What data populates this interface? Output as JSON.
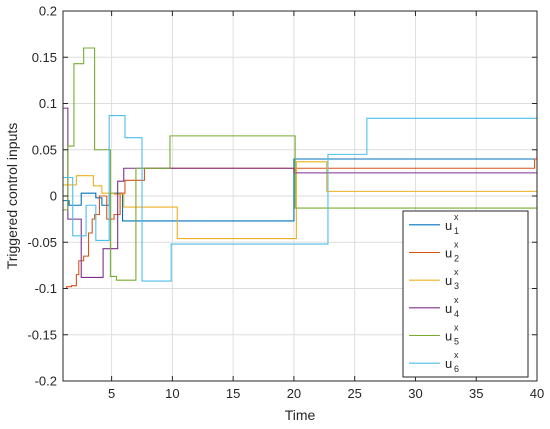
{
  "chart_data": {
    "type": "line",
    "step": true,
    "xlabel": "Time",
    "ylabel": "Triggered control inputs",
    "xlim": [
      1,
      40
    ],
    "ylim": [
      -0.2,
      0.2
    ],
    "xticks": [
      5,
      10,
      15,
      20,
      25,
      30,
      35,
      40
    ],
    "yticks": [
      -0.2,
      -0.15,
      -0.1,
      -0.05,
      0,
      0.05,
      0.1,
      0.15,
      0.2
    ],
    "ytick_labels": [
      "-0.2",
      "-0.15",
      "-0.1",
      "-0.05",
      "0",
      "0.05",
      "0.1",
      "0.15",
      "0.2"
    ],
    "grid": true,
    "legend_position": "bottom-right",
    "colors": [
      "#0072BD",
      "#D95319",
      "#EDB120",
      "#7E2F8E",
      "#77AC30",
      "#4DBEEE"
    ],
    "series": [
      {
        "symbol": "u",
        "sup": "x",
        "sub": "1",
        "points": [
          [
            1,
            -0.005
          ],
          [
            1.5,
            -0.01
          ],
          [
            2.5,
            0.003
          ],
          [
            3.7,
            -0.002
          ],
          [
            4.2,
            -0.01
          ],
          [
            4.8,
            0.003
          ],
          [
            5.9,
            -0.027
          ],
          [
            20,
            0.04
          ],
          [
            40,
            0.04
          ]
        ]
      },
      {
        "symbol": "u",
        "sup": "x",
        "sub": "2",
        "points": [
          [
            1,
            -0.1
          ],
          [
            1.3,
            -0.098
          ],
          [
            1.7,
            -0.097
          ],
          [
            2.1,
            -0.085
          ],
          [
            2.3,
            -0.07
          ],
          [
            2.7,
            -0.065
          ],
          [
            3.1,
            -0.04
          ],
          [
            3.4,
            -0.025
          ],
          [
            3.6,
            -0.02
          ],
          [
            4,
            0.0
          ],
          [
            4.6,
            -0.025
          ],
          [
            5.2,
            -0.02
          ],
          [
            5.7,
            0.003
          ],
          [
            6.1,
            0.017
          ],
          [
            7.7,
            0.03
          ],
          [
            20,
            0.028
          ],
          [
            20.2,
            0.03
          ],
          [
            39.8,
            0.04
          ],
          [
            40,
            0.05
          ]
        ]
      },
      {
        "symbol": "u",
        "sup": "x",
        "sub": "3",
        "points": [
          [
            1,
            0.012
          ],
          [
            2.1,
            0.022
          ],
          [
            3.5,
            0.011
          ],
          [
            4.2,
            0.003
          ],
          [
            5.2,
            0.002
          ],
          [
            6,
            -0.012
          ],
          [
            10.4,
            -0.046
          ],
          [
            20.2,
            0.037
          ],
          [
            22.7,
            0.005
          ],
          [
            40,
            0.005
          ]
        ]
      },
      {
        "symbol": "u",
        "sup": "x",
        "sub": "4",
        "points": [
          [
            1,
            0.095
          ],
          [
            1.4,
            -0.025
          ],
          [
            2.5,
            -0.088
          ],
          [
            4.3,
            -0.057
          ],
          [
            5.5,
            0.016
          ],
          [
            6,
            0.03
          ],
          [
            20,
            0.025
          ],
          [
            40,
            0.025
          ]
        ]
      },
      {
        "symbol": "u",
        "sup": "x",
        "sub": "5",
        "points": [
          [
            1,
            -0.015
          ],
          [
            1.4,
            0.054
          ],
          [
            1.9,
            0.143
          ],
          [
            2.7,
            0.16
          ],
          [
            3.6,
            0.05
          ],
          [
            4.9,
            -0.087
          ],
          [
            5.4,
            -0.091
          ],
          [
            7,
            0.03
          ],
          [
            9.8,
            0.065
          ],
          [
            20.1,
            -0.013
          ],
          [
            40,
            -0.013
          ]
        ]
      },
      {
        "symbol": "u",
        "sup": "x",
        "sub": "6",
        "points": [
          [
            1,
            0.02
          ],
          [
            1.8,
            -0.043
          ],
          [
            2.9,
            -0.01
          ],
          [
            3.7,
            -0.048
          ],
          [
            4.8,
            0.087
          ],
          [
            6.1,
            0.063
          ],
          [
            7.5,
            -0.092
          ],
          [
            9.9,
            -0.052
          ],
          [
            22.8,
            0.045
          ],
          [
            26,
            0.084
          ],
          [
            40,
            0.084
          ]
        ]
      }
    ]
  }
}
